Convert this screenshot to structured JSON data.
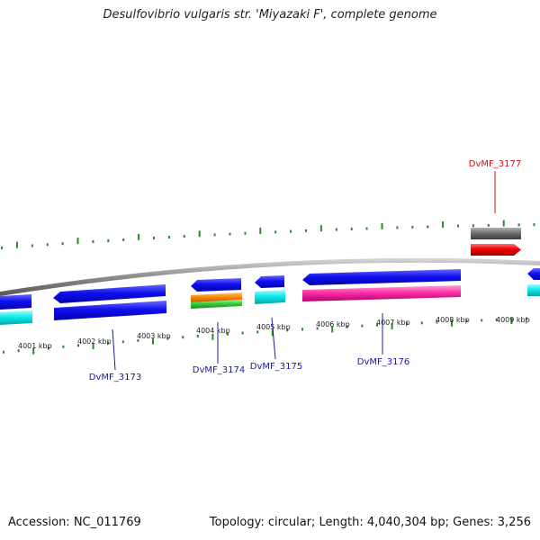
{
  "title": "Desulfovibrio vulgaris str. 'Miyazaki F', complete genome",
  "footer": {
    "accession": "Accession: NC_011769",
    "summary": "Topology: circular; Length: 4,040,304 bp; Genes: 3,256"
  },
  "ticks": [
    {
      "label": "4001 kbp"
    },
    {
      "label": "4002 kbp"
    },
    {
      "label": "4003 kbp"
    },
    {
      "label": "4004 kbp"
    },
    {
      "label": "4005 kbp"
    },
    {
      "label": "4006 kbp"
    },
    {
      "label": "4007 kbp"
    },
    {
      "label": "4008 kbp"
    },
    {
      "label": "4009 kbp"
    }
  ],
  "gene_labels": [
    {
      "label": "DvMF_3173",
      "color": "#1a1aa0"
    },
    {
      "label": "DvMF_3174",
      "color": "#1a1aa0"
    },
    {
      "label": "DvMF_3175",
      "color": "#1a1aa0"
    },
    {
      "label": "DvMF_3176",
      "color": "#1a1aa0"
    },
    {
      "label": "DvMF_3177",
      "color": "#cc1111"
    }
  ],
  "colors": {
    "forward_cds": "#e00000",
    "reverse_cds": "#0a0ae6",
    "gene": "#6e6e6e",
    "backbone": "#8c8c8c",
    "tick_marks": "#2a8a2a",
    "tick_label": "#222222",
    "cyan_feature": "#00e6e6",
    "orange_feature": "#ff8800",
    "green_feature": "#33cc33",
    "pink_feature": "#ff33aa"
  }
}
